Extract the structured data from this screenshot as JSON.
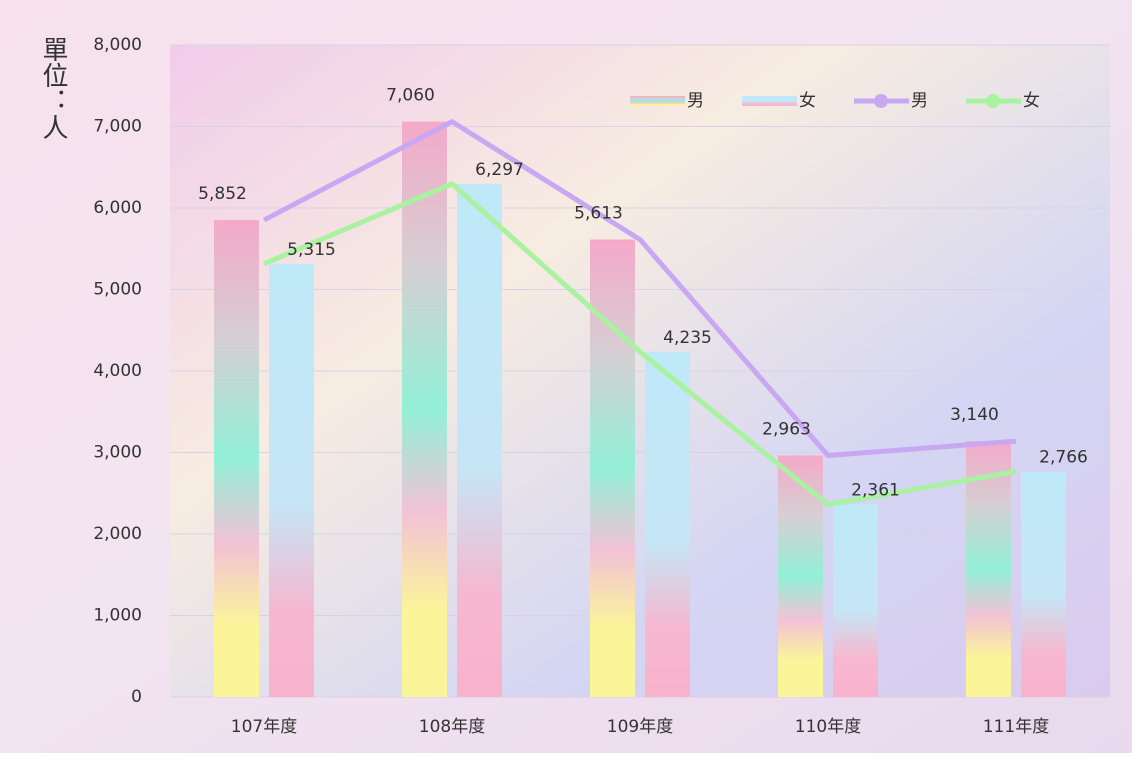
{
  "chart_data": {
    "type": "bar-line",
    "y_label": "單位：人",
    "categories": [
      "107年度",
      "108年度",
      "109年度",
      "110年度",
      "111年度"
    ],
    "series": [
      {
        "name": "男",
        "type": "bar",
        "color": "#f4a9c8",
        "values": [
          5852,
          7060,
          5613,
          2963,
          3140
        ],
        "value_labels": [
          "5,852",
          "7,060",
          "5,613",
          "2,963",
          "3,140"
        ]
      },
      {
        "name": "女",
        "type": "bar",
        "color": "#bfe9f8",
        "values": [
          5315,
          6297,
          4235,
          2361,
          2766
        ],
        "value_labels": [
          "5,315",
          "6,297",
          "4,235",
          "2,361",
          "2,766"
        ]
      },
      {
        "name": "男",
        "type": "line",
        "color": "#c9a8f3",
        "values": [
          5852,
          7060,
          5613,
          2963,
          3140
        ]
      },
      {
        "name": "女",
        "type": "line",
        "color": "#a9f2a0",
        "values": [
          5315,
          6297,
          4235,
          2361,
          2766
        ]
      }
    ],
    "ylim": [
      0,
      8000
    ],
    "yticks": [
      0,
      {
        "value": 1000,
        "label": "1,000"
      },
      {
        "value": 2000,
        "label": "2,000"
      },
      {
        "value": 3000,
        "label": "3,000"
      },
      {
        "value": 4000,
        "label": "4,000"
      },
      {
        "value": 5000,
        "label": "5,000"
      },
      {
        "value": 6000,
        "label": "6,000"
      },
      {
        "value": 7000,
        "label": "7,000"
      },
      {
        "value": 8000,
        "label": "8,000"
      }
    ],
    "grid": true
  }
}
